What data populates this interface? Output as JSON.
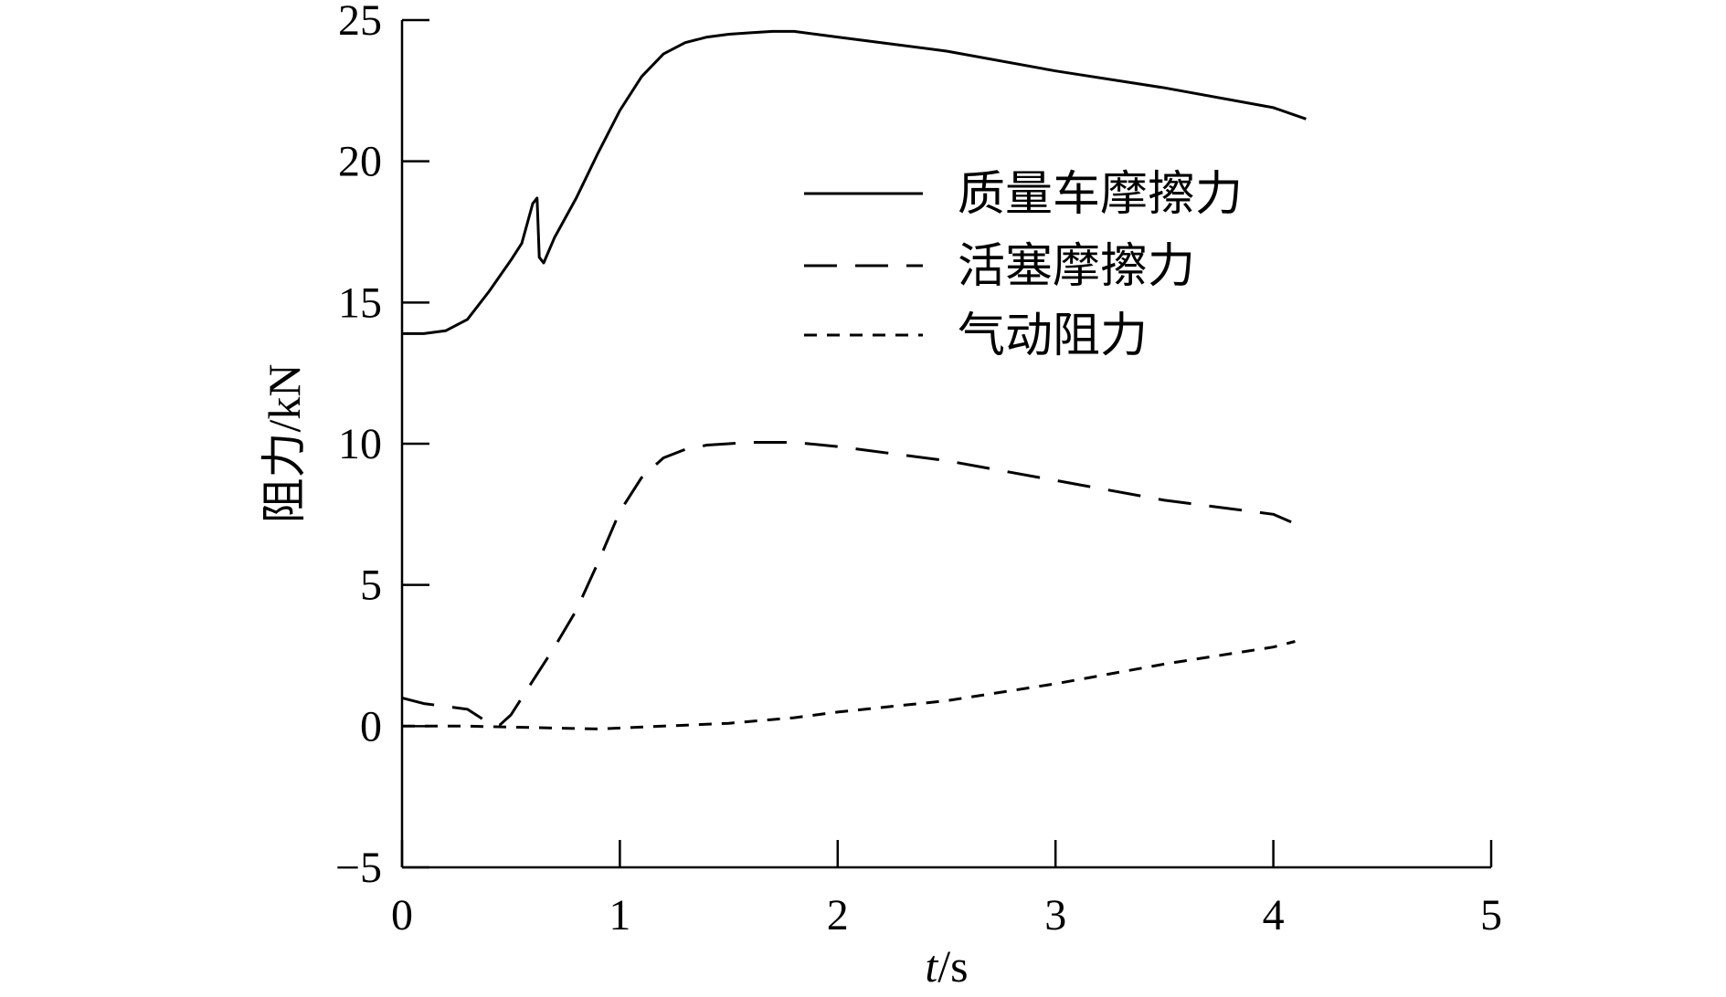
{
  "chart_data": {
    "type": "line",
    "title": "",
    "xlabel_italic": "t",
    "xlabel_rest": "/s",
    "ylabel": "阻力/kN",
    "xlim": [
      0,
      5
    ],
    "ylim": [
      -5,
      25
    ],
    "xticks": [
      0,
      1,
      2,
      3,
      4,
      5
    ],
    "yticks": [
      -5,
      0,
      5,
      10,
      15,
      20,
      25
    ],
    "ytick_labels": [
      "−5",
      "0",
      "5",
      "10",
      "15",
      "20",
      "25"
    ],
    "grid": false,
    "legend_position": "upper-right",
    "series": [
      {
        "name": "质量车摩擦力",
        "style": "solid",
        "x": [
          0,
          0.1,
          0.2,
          0.3,
          0.4,
          0.5,
          0.55,
          0.6,
          0.62,
          0.63,
          0.65,
          0.7,
          0.8,
          0.9,
          1.0,
          1.1,
          1.2,
          1.3,
          1.4,
          1.5,
          1.6,
          1.7,
          1.8,
          1.9,
          2.0,
          2.2,
          2.5,
          3.0,
          3.5,
          4.0,
          4.15
        ],
        "y": [
          13.9,
          13.9,
          14.0,
          14.4,
          15.4,
          16.5,
          17.1,
          18.5,
          18.7,
          16.6,
          16.4,
          17.3,
          18.7,
          20.3,
          21.8,
          23.0,
          23.8,
          24.2,
          24.4,
          24.5,
          24.55,
          24.6,
          24.6,
          24.5,
          24.4,
          24.2,
          23.9,
          23.2,
          22.6,
          21.9,
          21.5
        ]
      },
      {
        "name": "活塞摩擦力",
        "style": "long-dash",
        "x": [
          0,
          0.1,
          0.2,
          0.3,
          0.4,
          0.45,
          0.5,
          0.6,
          0.7,
          0.8,
          0.9,
          1.0,
          1.1,
          1.2,
          1.3,
          1.4,
          1.5,
          1.6,
          1.7,
          1.8,
          2.0,
          2.5,
          3.0,
          3.5,
          3.8,
          4.0,
          4.15
        ],
        "y": [
          1.0,
          0.8,
          0.7,
          0.6,
          0.1,
          0.05,
          0.4,
          1.6,
          2.8,
          4.1,
          5.8,
          7.6,
          8.8,
          9.5,
          9.8,
          9.95,
          10.0,
          10.05,
          10.05,
          10.05,
          9.9,
          9.4,
          8.7,
          8.0,
          7.7,
          7.5,
          7.0
        ]
      },
      {
        "name": "气动阻力",
        "style": "short-dash",
        "x": [
          0,
          0.3,
          0.6,
          0.9,
          1.2,
          1.5,
          1.8,
          2.0,
          2.5,
          3.0,
          3.5,
          4.0,
          4.1
        ],
        "y": [
          0.0,
          0.0,
          -0.05,
          -0.1,
          0.0,
          0.1,
          0.3,
          0.5,
          0.9,
          1.5,
          2.2,
          2.8,
          3.0
        ]
      }
    ]
  }
}
